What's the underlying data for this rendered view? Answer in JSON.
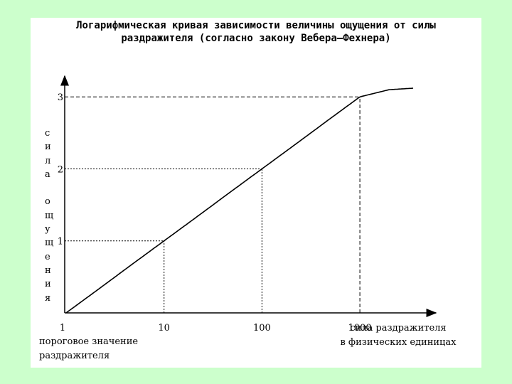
{
  "chart_data": {
    "type": "line",
    "title": "Логарифмическая кривая зависимости величины ощущения от силы\nраздражителя (согласно закону Вебера–Фехнера)",
    "ylabel": [
      "с",
      "и",
      "л",
      "а",
      "",
      "о",
      "щ",
      "у",
      "щ",
      "е",
      "н",
      "и",
      "я"
    ],
    "xlabel": "сила раздражителя\nв физических единицах",
    "threshold_label": "пороговое значение\nраздражителя",
    "x_scale": "log",
    "xlim": [
      1,
      3500
    ],
    "ylim": [
      0,
      3.15
    ],
    "x_ticks": [
      {
        "value": 1,
        "label": "1"
      },
      {
        "value": 10,
        "label": "10"
      },
      {
        "value": 100,
        "label": "100"
      },
      {
        "value": 1000,
        "label": "1000"
      }
    ],
    "y_ticks": [
      {
        "value": 1,
        "label": "1"
      },
      {
        "value": 2,
        "label": "2"
      },
      {
        "value": 3,
        "label": "3"
      }
    ],
    "series": [
      {
        "x": [
          1,
          2,
          5,
          10,
          20,
          50,
          100,
          200,
          500,
          1000,
          2000,
          3500
        ],
        "y": [
          0,
          0.3,
          0.7,
          1,
          1.3,
          1.7,
          2,
          2.3,
          2.7,
          3,
          3.1,
          3.12
        ]
      }
    ],
    "guides": [
      {
        "x": 10,
        "y": 1
      },
      {
        "x": 100,
        "y": 2
      },
      {
        "x": 1000,
        "y": 3
      }
    ],
    "grid": false
  }
}
